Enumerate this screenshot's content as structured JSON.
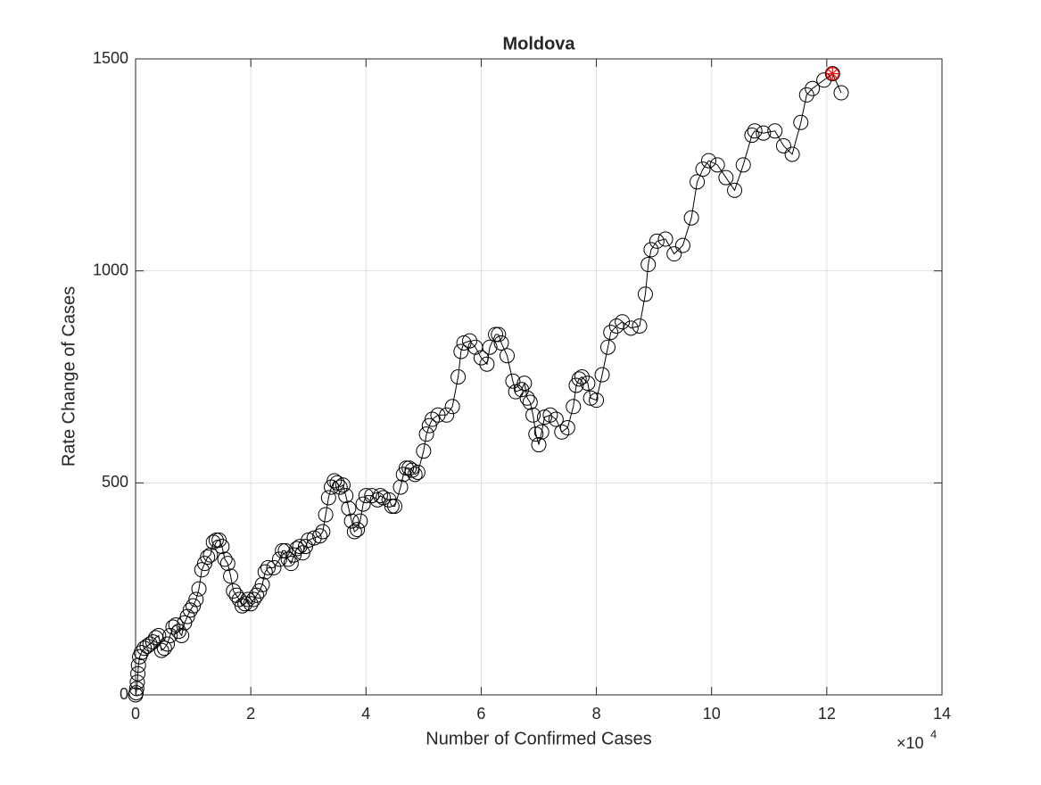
{
  "chart_data": {
    "type": "line",
    "title": "Moldova",
    "xlabel": "Number of Confirmed Cases",
    "ylabel": "Rate Change of Cases",
    "x_multiplier": {
      "base": "×10",
      "exponent": "4"
    },
    "x": [
      0,
      100,
      200,
      300,
      400,
      500,
      700,
      1000,
      1500,
      2000,
      2500,
      3000,
      3500,
      4000,
      4500,
      5000,
      5500,
      6000,
      6500,
      7000,
      7500,
      8000,
      8500,
      9000,
      9500,
      10000,
      10500,
      11000,
      11500,
      12000,
      12500,
      13000,
      13500,
      14000,
      14500,
      15000,
      15500,
      16000,
      16500,
      17000,
      17500,
      18000,
      18500,
      19000,
      19500,
      20000,
      20500,
      21000,
      21500,
      22000,
      22500,
      23000,
      24000,
      25000,
      25500,
      26000,
      26500,
      27000,
      27500,
      28000,
      28500,
      29000,
      29500,
      30000,
      31000,
      32000,
      32500,
      33000,
      33500,
      34000,
      34500,
      35000,
      35500,
      36000,
      36500,
      37000,
      37500,
      38000,
      38500,
      39000,
      39500,
      40000,
      41000,
      42000,
      42500,
      43000,
      44000,
      44500,
      45000,
      46000,
      46500,
      47000,
      47500,
      48000,
      48500,
      49000,
      50000,
      50500,
      51000,
      51500,
      52500,
      54000,
      55000,
      56000,
      56500,
      57000,
      58000,
      59000,
      60000,
      61000,
      61500,
      62500,
      63000,
      63500,
      64500,
      65500,
      66000,
      67000,
      67500,
      68000,
      68500,
      69000,
      69500,
      70000,
      70500,
      71000,
      72000,
      73000,
      74000,
      75000,
      76000,
      76500,
      77000,
      77500,
      78500,
      79000,
      80000,
      81000,
      82000,
      82500,
      83500,
      84500,
      86000,
      87500,
      88500,
      89000,
      89500,
      90500,
      92000,
      93500,
      95000,
      96500,
      97500,
      98500,
      99500,
      101000,
      102500,
      104000,
      105500,
      107000,
      107500,
      109000,
      111000,
      112500,
      114000,
      115500,
      116500,
      117500,
      119500,
      121000,
      122500
    ],
    "series": [
      {
        "color": "#000000",
        "values": [
          0,
          5,
          15,
          30,
          50,
          70,
          90,
          100,
          110,
          115,
          120,
          125,
          135,
          140,
          105,
          110,
          120,
          140,
          160,
          165,
          150,
          140,
          170,
          185,
          200,
          210,
          225,
          250,
          295,
          310,
          325,
          330,
          360,
          365,
          365,
          350,
          320,
          310,
          280,
          245,
          235,
          225,
          210,
          215,
          225,
          215,
          225,
          235,
          245,
          260,
          290,
          300,
          300,
          320,
          340,
          340,
          320,
          310,
          330,
          345,
          350,
          335,
          350,
          365,
          370,
          375,
          385,
          425,
          465,
          490,
          505,
          500,
          490,
          495,
          470,
          440,
          410,
          385,
          390,
          410,
          450,
          470,
          470,
          460,
          470,
          465,
          460,
          445,
          445,
          490,
          520,
          535,
          535,
          530,
          520,
          525,
          575,
          615,
          635,
          650,
          660,
          660,
          680,
          750,
          810,
          830,
          835,
          820,
          795,
          780,
          820,
          850,
          850,
          830,
          800,
          740,
          715,
          720,
          735,
          700,
          690,
          660,
          615,
          590,
          620,
          655,
          660,
          650,
          620,
          630,
          680,
          730,
          745,
          750,
          735,
          700,
          695,
          755,
          820,
          855,
          870,
          880,
          865,
          870,
          945,
          1015,
          1050,
          1070,
          1075,
          1040,
          1060,
          1125,
          1210,
          1240,
          1260,
          1250,
          1220,
          1190,
          1250,
          1320,
          1330,
          1325,
          1330,
          1295,
          1275,
          1350,
          1415,
          1430,
          1450,
          1465,
          1420
        ]
      }
    ],
    "highlight": {
      "x": 121000,
      "y": 1465,
      "color": "#ff0000"
    },
    "xlim": [
      0,
      140000
    ],
    "ylim": [
      0,
      1500
    ],
    "xticks": [
      {
        "value": 0,
        "label": "0"
      },
      {
        "value": 20000,
        "label": "2"
      },
      {
        "value": 40000,
        "label": "4"
      },
      {
        "value": 60000,
        "label": "6"
      },
      {
        "value": 80000,
        "label": "8"
      },
      {
        "value": 100000,
        "label": "10"
      },
      {
        "value": 120000,
        "label": "12"
      },
      {
        "value": 140000,
        "label": "14"
      }
    ],
    "yticks": [
      0,
      500,
      1000,
      1500
    ],
    "grid": true
  }
}
